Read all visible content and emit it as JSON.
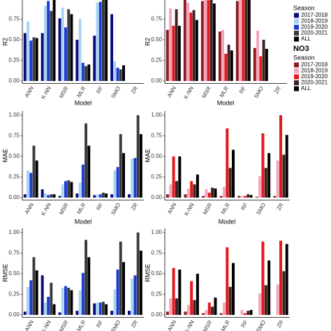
{
  "chart_data": [
    {
      "type": "bar",
      "ylabel": "R2",
      "xlabel": "Model",
      "legend_title": "Season",
      "categories": [
        "ANN",
        "K-NN",
        "MSR",
        "MLR",
        "RF",
        "SMO",
        "ZR"
      ],
      "series": [
        {
          "name": "2017-2018",
          "color": "#0b0b7a",
          "values": [
            0.58,
            0.58,
            0.76,
            0.5,
            0.55,
            0.81,
            0
          ]
        },
        {
          "name": "2018-2019",
          "color": "#a9d3f2",
          "values": [
            0.72,
            0.91,
            0.89,
            0.75,
            0.95,
            0.24,
            0
          ]
        },
        {
          "name": "2019-2020",
          "color": "#1c3bd4",
          "values": [
            0.49,
            0.97,
            0.65,
            0.22,
            0.96,
            0.16,
            0
          ]
        },
        {
          "name": "2020-2021",
          "color": "#3a3a3a",
          "values": [
            0.53,
            0.85,
            0.87,
            0.18,
            1.0,
            0.14,
            0
          ]
        },
        {
          "name": "ALL",
          "color": "#000000",
          "values": [
            0.52,
            1.0,
            0.81,
            0.2,
            1.0,
            0.19,
            0
          ]
        }
      ],
      "ylim": [
        -0.03,
        1.05
      ],
      "yticks": [
        {
          "value": 0,
          "label": "0.00"
        },
        {
          "value": 0.25,
          "label": "0.25"
        },
        {
          "value": 0.5,
          "label": "0.50"
        },
        {
          "value": 0.75,
          "label": "0.75"
        }
      ]
    },
    {
      "type": "bar",
      "ylabel": "R2",
      "xlabel": "Model",
      "legend_heading": "NO3",
      "legend_title": "Season",
      "categories": [
        "ANN",
        "K-NN",
        "MSR",
        "MLR",
        "RF",
        "SMO",
        "ZR"
      ],
      "series": [
        {
          "name": "2017-2018",
          "color": "#8e1b22",
          "values": [
            0.62,
            1.0,
            0.97,
            0.6,
            0.97,
            0.4,
            0
          ]
        },
        {
          "name": "2018-2019",
          "color": "#f2a5bd",
          "values": [
            0.88,
            0.95,
            1.0,
            0.62,
            1.0,
            0.61,
            0
          ]
        },
        {
          "name": "2019-2020",
          "color": "#e3191c",
          "values": [
            0.67,
            0.83,
            0.98,
            0.33,
            1.0,
            0.3,
            0
          ]
        },
        {
          "name": "2020-2021",
          "color": "#3f2224",
          "values": [
            0.87,
            0.86,
            1.0,
            0.44,
            1.0,
            0.5,
            0
          ]
        },
        {
          "name": "ALL",
          "color": "#000000",
          "values": [
            0.67,
            0.74,
            0.94,
            0.37,
            1.0,
            0.39,
            0
          ]
        }
      ],
      "ylim": [
        -0.03,
        1.05
      ],
      "yticks": [
        {
          "value": 0,
          "label": "0.00"
        },
        {
          "value": 0.25,
          "label": "0.25"
        },
        {
          "value": 0.5,
          "label": "0.50"
        },
        {
          "value": 0.75,
          "label": "0.75"
        }
      ]
    },
    {
      "type": "bar",
      "ylabel": "MAE",
      "xlabel": "Model",
      "categories": [
        "ANN",
        "K-NN",
        "MSR",
        "MLR",
        "RF",
        "SMO",
        "ZR"
      ],
      "series": [
        {
          "name": "2017-2018",
          "color": "#0b0b7a",
          "values": [
            0.04,
            0.1,
            0.02,
            0.05,
            0.03,
            0.04,
            0.04
          ]
        },
        {
          "name": "2018-2019",
          "color": "#a9d3f2",
          "values": [
            0.33,
            0.05,
            0.16,
            0.18,
            0.04,
            0.33,
            0.47
          ]
        },
        {
          "name": "2019-2020",
          "color": "#1c3bd4",
          "values": [
            0.3,
            0.03,
            0.2,
            0.4,
            0.04,
            0.37,
            0.48
          ]
        },
        {
          "name": "2020-2021",
          "color": "#3a3a3a",
          "values": [
            0.63,
            0.04,
            0.21,
            0.9,
            0.06,
            0.77,
            1.0
          ]
        },
        {
          "name": "ALL",
          "color": "#000000",
          "values": [
            0.45,
            0.04,
            0.19,
            0.63,
            0.05,
            0.54,
            0.77
          ]
        }
      ],
      "ylim": [
        -0.03,
        1.05
      ],
      "yticks": [
        {
          "value": 0,
          "label": "0.00"
        },
        {
          "value": 0.25,
          "label": "0.25"
        },
        {
          "value": 0.5,
          "label": "0.50"
        },
        {
          "value": 0.75,
          "label": "0.75"
        },
        {
          "value": 1,
          "label": "1.00"
        }
      ]
    },
    {
      "type": "bar",
      "ylabel": "MAE",
      "xlabel": "Model",
      "categories": [
        "ANN",
        "K-NN",
        "MSR",
        "MLR",
        "RF",
        "SMO",
        "ZR"
      ],
      "series": [
        {
          "name": "2017-2018",
          "color": "#8e1b22",
          "values": [
            0.04,
            0.04,
            0.02,
            0.02,
            0.02,
            0.01,
            0.02
          ]
        },
        {
          "name": "2018-2019",
          "color": "#f2a5bd",
          "values": [
            0.16,
            0.11,
            0.1,
            0.13,
            0.02,
            0.26,
            0.45
          ]
        },
        {
          "name": "2019-2020",
          "color": "#e3191c",
          "values": [
            0.5,
            0.2,
            0.06,
            0.84,
            0.02,
            0.78,
            1.0
          ]
        },
        {
          "name": "2020-2021",
          "color": "#3f2224",
          "values": [
            0.2,
            0.16,
            0.12,
            0.36,
            0.04,
            0.36,
            0.52
          ]
        },
        {
          "name": "ALL",
          "color": "#000000",
          "values": [
            0.5,
            0.28,
            0.11,
            0.58,
            0.03,
            0.54,
            0.76
          ]
        }
      ],
      "ylim": [
        -0.03,
        1.05
      ],
      "yticks": [
        {
          "value": 0,
          "label": "0.00"
        },
        {
          "value": 0.25,
          "label": "0.25"
        },
        {
          "value": 0.5,
          "label": "0.50"
        },
        {
          "value": 0.75,
          "label": "0.75"
        },
        {
          "value": 1,
          "label": "1.00"
        }
      ]
    },
    {
      "type": "bar",
      "ylabel": "RMSE",
      "categories": [
        "ANN",
        "K-NN",
        "MSR",
        "MLR",
        "RF",
        "SMO",
        "ZR"
      ],
      "series": [
        {
          "name": "2017-2018",
          "color": "#0b0b7a",
          "values": [
            0.04,
            0.48,
            0.03,
            0.05,
            0.14,
            0.05,
            0.05
          ]
        },
        {
          "name": "2018-2019",
          "color": "#a9d3f2",
          "values": [
            0.34,
            0.15,
            0.33,
            0.3,
            0.15,
            0.31,
            0.44
          ]
        },
        {
          "name": "2019-2020",
          "color": "#1c3bd4",
          "values": [
            0.42,
            0.22,
            0.35,
            0.51,
            0.15,
            0.55,
            0.48
          ]
        },
        {
          "name": "2020-2021",
          "color": "#3a3a3a",
          "values": [
            0.7,
            0.39,
            0.33,
            0.91,
            0.16,
            0.89,
            1.0
          ]
        },
        {
          "name": "ALL",
          "color": "#000000",
          "values": [
            0.54,
            0.13,
            0.3,
            0.7,
            0.13,
            0.64,
            0.78
          ]
        }
      ],
      "ylim": [
        -0.03,
        1.05
      ],
      "yticks": [
        {
          "value": 0,
          "label": "0.00"
        },
        {
          "value": 0.25,
          "label": "0.25"
        },
        {
          "value": 0.5,
          "label": "0.50"
        },
        {
          "value": 0.75,
          "label": "0.75"
        },
        {
          "value": 1,
          "label": "1.00"
        }
      ]
    },
    {
      "type": "bar",
      "ylabel": "RMSE",
      "categories": [
        "ANN",
        "K-NN",
        "MSR",
        "MLR",
        "RF",
        "SMO",
        "ZR"
      ],
      "series": [
        {
          "name": "2017-2018",
          "color": "#8e1b22",
          "values": [
            0.04,
            0.04,
            0.02,
            0.02,
            0,
            0,
            0
          ]
        },
        {
          "name": "2018-2019",
          "color": "#f2a5bd",
          "values": [
            0.2,
            0.12,
            0.06,
            0.15,
            0.06,
            0.26,
            0.37
          ]
        },
        {
          "name": "2019-2020",
          "color": "#e3191c",
          "values": [
            0.57,
            0.41,
            0.15,
            0.82,
            0.02,
            0.89,
            0.9
          ]
        },
        {
          "name": "2020-2021",
          "color": "#3f2224",
          "values": [
            0.2,
            0.18,
            0.1,
            0.34,
            0.05,
            0.36,
            0.53
          ]
        },
        {
          "name": "ALL",
          "color": "#000000",
          "values": [
            0.55,
            0.5,
            0.21,
            0.63,
            0.06,
            0.66,
            0.86
          ]
        }
      ],
      "ylim": [
        -0.03,
        1.05
      ],
      "yticks": [
        {
          "value": 0,
          "label": "0.00"
        },
        {
          "value": 0.25,
          "label": "0.25"
        },
        {
          "value": 0.5,
          "label": "0.50"
        },
        {
          "value": 0.75,
          "label": "0.75"
        },
        {
          "value": 1,
          "label": "1.00"
        }
      ]
    }
  ]
}
